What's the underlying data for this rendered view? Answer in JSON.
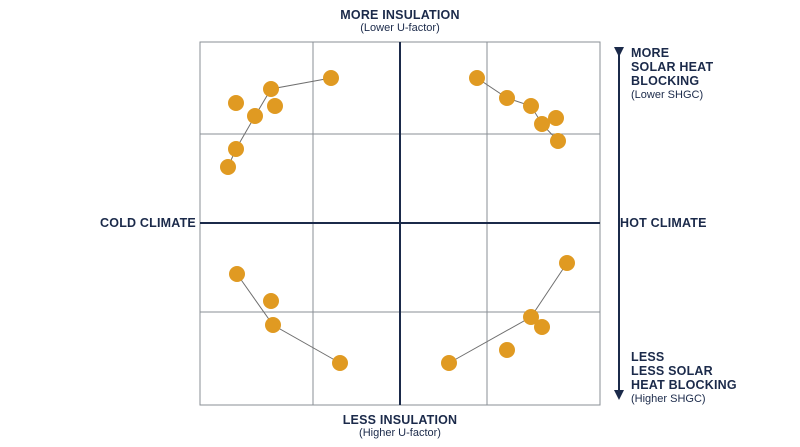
{
  "labels": {
    "top_title": "MORE INSULATION",
    "top_sub": "(Lower U-factor)",
    "bottom_title": "LESS INSULATION",
    "bottom_sub": "(Higher U-factor)",
    "left": "COLD CLIMATE",
    "right": "HOT CLIMATE",
    "right_top_lines": [
      "MORE",
      "SOLAR HEAT",
      "BLOCKING"
    ],
    "right_top_sub": "(Lower SHGC)",
    "right_bottom_lines": [
      "LESS",
      "LESS SOLAR",
      "HEAT BLOCKING"
    ],
    "right_bottom_sub": "(Higher SHGC)"
  },
  "colors": {
    "axis": "#1b2a4a",
    "grid": "#8a8f96",
    "dot": "#e09a22",
    "connector": "#6f6f6f"
  },
  "clusters": [
    {
      "quadrant": "top-left",
      "points": [
        [
          331,
          78
        ],
        [
          271,
          89
        ],
        [
          275,
          106
        ],
        [
          236,
          103
        ],
        [
          255,
          116
        ],
        [
          236,
          149
        ],
        [
          228,
          167
        ]
      ],
      "path": [
        [
          331,
          78
        ],
        [
          271,
          89
        ],
        [
          255,
          116
        ],
        [
          236,
          149
        ],
        [
          228,
          167
        ]
      ]
    },
    {
      "quadrant": "top-right",
      "points": [
        [
          477,
          78
        ],
        [
          507,
          98
        ],
        [
          531,
          106
        ],
        [
          556,
          118
        ],
        [
          542,
          124
        ],
        [
          558,
          141
        ]
      ],
      "path": [
        [
          477,
          78
        ],
        [
          507,
          98
        ],
        [
          531,
          106
        ],
        [
          542,
          124
        ],
        [
          558,
          141
        ]
      ]
    },
    {
      "quadrant": "bottom-left",
      "points": [
        [
          237,
          274
        ],
        [
          271,
          301
        ],
        [
          273,
          325
        ],
        [
          340,
          363
        ]
      ],
      "path": [
        [
          237,
          274
        ],
        [
          273,
          325
        ],
        [
          340,
          363
        ]
      ]
    },
    {
      "quadrant": "bottom-right",
      "points": [
        [
          567,
          263
        ],
        [
          531,
          317
        ],
        [
          542,
          327
        ],
        [
          507,
          350
        ],
        [
          449,
          363
        ]
      ],
      "path": [
        [
          567,
          263
        ],
        [
          531,
          317
        ],
        [
          449,
          363
        ]
      ]
    }
  ]
}
